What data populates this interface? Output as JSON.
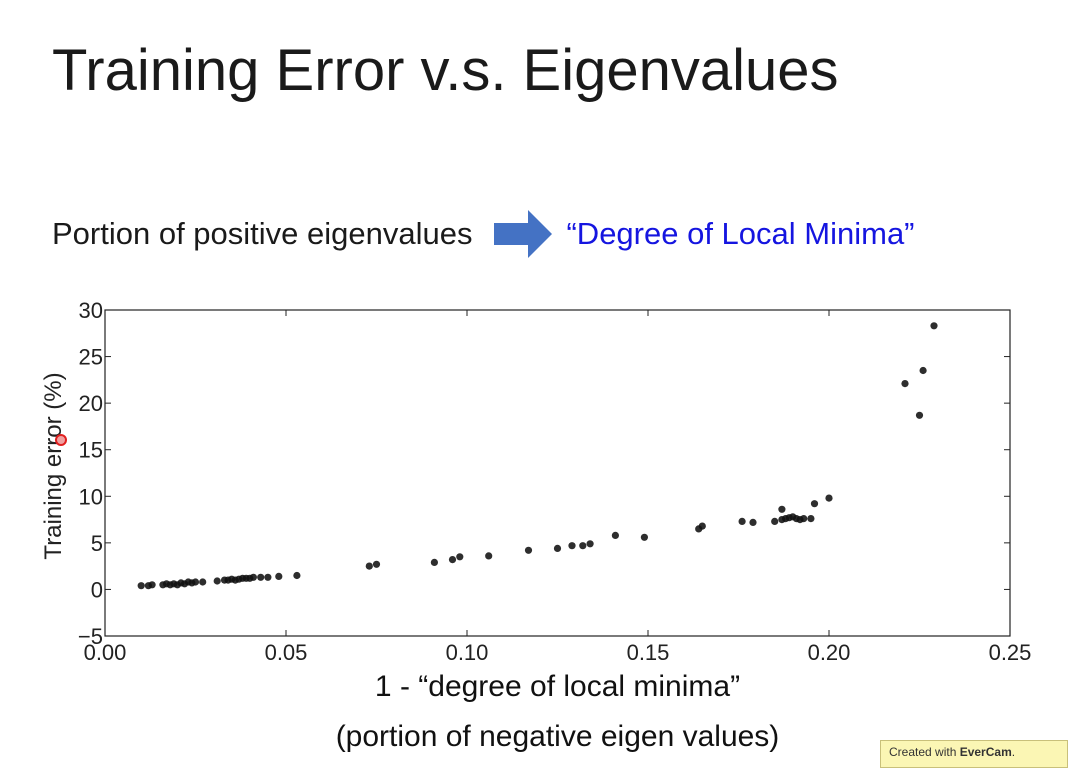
{
  "slide": {
    "title": "Training Error v.s. Eigenvalues",
    "subtitle_left": "Portion of positive eigenvalues",
    "subtitle_right": "“Degree of Local Minima”",
    "arrow_color": "#4472c4",
    "highlight_color": "#1515e0"
  },
  "watermark": {
    "prefix": "Created with ",
    "brand": "EverCam",
    "suffix": "."
  },
  "chart_data": {
    "type": "scatter",
    "title": "",
    "xlabel": "1 - “degree of local minima”",
    "xlabel_line2": "(portion of negative eigen values)",
    "ylabel": "Training error (%)",
    "xlim": [
      0.0,
      0.25
    ],
    "ylim": [
      -5,
      30
    ],
    "xticks": [
      "0.00",
      "0.05",
      "0.10",
      "0.15",
      "0.20",
      "0.25"
    ],
    "yticks": [
      "−5",
      "0",
      "5",
      "10",
      "15",
      "20",
      "25",
      "30"
    ],
    "grid": false,
    "point_color": "#111111",
    "x": [
      0.01,
      0.012,
      0.013,
      0.016,
      0.017,
      0.018,
      0.019,
      0.02,
      0.021,
      0.022,
      0.023,
      0.024,
      0.025,
      0.027,
      0.031,
      0.033,
      0.034,
      0.035,
      0.036,
      0.037,
      0.038,
      0.039,
      0.04,
      0.041,
      0.043,
      0.045,
      0.048,
      0.053,
      0.073,
      0.075,
      0.091,
      0.096,
      0.098,
      0.106,
      0.117,
      0.125,
      0.129,
      0.132,
      0.134,
      0.141,
      0.149,
      0.164,
      0.165,
      0.176,
      0.179,
      0.185,
      0.187,
      0.187,
      0.188,
      0.189,
      0.19,
      0.191,
      0.192,
      0.193,
      0.195,
      0.196,
      0.2,
      0.221,
      0.225,
      0.226,
      0.229
    ],
    "y": [
      0.4,
      0.4,
      0.5,
      0.5,
      0.6,
      0.5,
      0.6,
      0.5,
      0.7,
      0.6,
      0.8,
      0.7,
      0.8,
      0.8,
      0.9,
      1.0,
      1.0,
      1.1,
      1.0,
      1.1,
      1.2,
      1.2,
      1.2,
      1.3,
      1.3,
      1.3,
      1.4,
      1.5,
      2.5,
      2.7,
      2.9,
      3.2,
      3.5,
      3.6,
      4.2,
      4.4,
      4.7,
      4.7,
      4.9,
      5.8,
      5.6,
      6.5,
      6.8,
      7.3,
      7.2,
      7.3,
      7.5,
      8.6,
      7.6,
      7.7,
      7.8,
      7.6,
      7.5,
      7.6,
      7.6,
      9.2,
      9.8,
      22.1,
      18.7,
      23.5,
      28.3
    ]
  }
}
